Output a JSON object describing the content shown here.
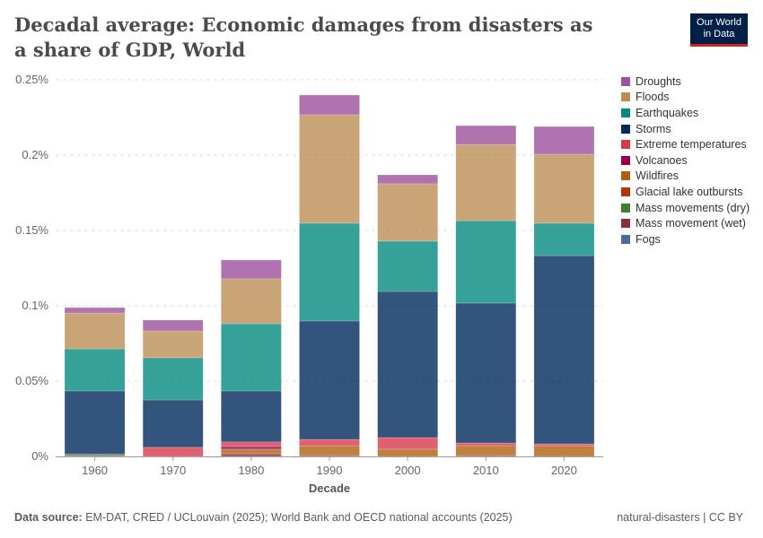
{
  "title": "Decadal average: Economic damages from disasters as a share of GDP, World",
  "logo": {
    "line1": "Our World",
    "line2": "in Data"
  },
  "footer": {
    "source_label": "Data source:",
    "source": "EM-DAT, CRED / UCLouvain (2025); World Bank and OECD national accounts (2025)",
    "license": "natural-disasters | CC BY"
  },
  "chart_data": {
    "type": "bar",
    "stacked": true,
    "xlabel": "Decade",
    "ylabel": "",
    "ylim": [
      0,
      0.25
    ],
    "yticks": [
      0,
      0.05,
      0.1,
      0.15,
      0.2,
      0.25
    ],
    "ytick_labels": [
      "0%",
      "0.05%",
      "0.1%",
      "0.15%",
      "0.2%",
      "0.25%"
    ],
    "grid": true,
    "legend_position": "right",
    "categories": [
      "1960",
      "1970",
      "1980",
      "1990",
      "2000",
      "2010",
      "2020"
    ],
    "series": [
      {
        "name": "Fogs",
        "color": "#4c6a9c",
        "values": [
          0,
          0,
          0,
          0,
          0,
          0,
          0
        ]
      },
      {
        "name": "Mass movement (wet)",
        "color": "#883039",
        "values": [
          0.0005,
          0,
          0.0018,
          0.0006,
          0,
          0.0006,
          0
        ]
      },
      {
        "name": "Mass movements (dry)",
        "color": "#3f7f30",
        "values": [
          0.001,
          0,
          0,
          0,
          0,
          0,
          0
        ]
      },
      {
        "name": "Glacial lake outbursts",
        "color": "#b13507",
        "values": [
          0,
          0,
          0,
          0,
          0,
          0,
          0
        ]
      },
      {
        "name": "Wildfires",
        "color": "#b05e0f",
        "values": [
          0,
          0,
          0.003,
          0.0065,
          0.0048,
          0.0065,
          0.0071
        ]
      },
      {
        "name": "Volcanoes",
        "color": "#970046",
        "values": [
          0,
          0,
          0.0018,
          0,
          0,
          0,
          0
        ]
      },
      {
        "name": "Extreme temperatures",
        "color": "#d8384b",
        "values": [
          0,
          0.006,
          0.003,
          0.0042,
          0.0077,
          0.0018,
          0.0012
        ]
      },
      {
        "name": "Storms",
        "color": "#00295b",
        "values": [
          0.042,
          0.0315,
          0.0339,
          0.0786,
          0.097,
          0.0929,
          0.125
        ]
      },
      {
        "name": "Earthquakes",
        "color": "#028980",
        "values": [
          0.0279,
          0.028,
          0.0446,
          0.0649,
          0.0334,
          0.0547,
          0.0215
        ]
      },
      {
        "name": "Floods",
        "color": "#ba8d54",
        "values": [
          0.0238,
          0.0178,
          0.0298,
          0.072,
          0.0381,
          0.0506,
          0.0458
        ]
      },
      {
        "name": "Droughts",
        "color": "#9d509c",
        "values": [
          0.0036,
          0.0072,
          0.0125,
          0.0131,
          0.0059,
          0.0125,
          0.0184
        ]
      }
    ]
  }
}
